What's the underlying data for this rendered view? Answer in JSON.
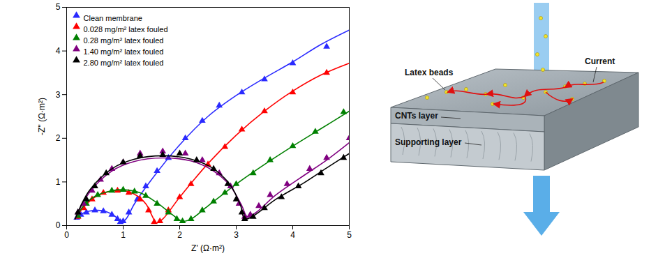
{
  "chart_data": {
    "type": "scatter",
    "x_label": "Z' (Ω·m²)",
    "y_label": "-Z'' (Ω·m²)",
    "xlim": [
      0,
      5
    ],
    "ylim": [
      0,
      5
    ],
    "xticks": [
      0,
      1,
      2,
      3,
      4,
      5
    ],
    "yticks": [
      0,
      1,
      2,
      3,
      4,
      5
    ],
    "grid": false,
    "legend": "top-left",
    "marker": "triangle",
    "series": [
      {
        "name": "Clean membrane",
        "color": "#2a2aff",
        "points": [
          [
            0.18,
            0.18
          ],
          [
            0.25,
            0.25
          ],
          [
            0.35,
            0.3
          ],
          [
            0.5,
            0.35
          ],
          [
            0.65,
            0.33
          ],
          [
            0.8,
            0.25
          ],
          [
            0.9,
            0.15
          ],
          [
            0.95,
            0.08
          ],
          [
            1.0,
            0.1
          ],
          [
            1.1,
            0.3
          ],
          [
            1.25,
            0.6
          ],
          [
            1.4,
            0.9
          ],
          [
            1.6,
            1.25
          ],
          [
            1.8,
            1.55
          ],
          [
            2.1,
            2.0
          ],
          [
            2.4,
            2.4
          ],
          [
            2.7,
            2.75
          ],
          [
            3.1,
            3.05
          ],
          [
            3.5,
            3.35
          ],
          [
            4.0,
            3.72
          ],
          [
            4.6,
            4.1
          ]
        ],
        "fit": [
          [
            0.15,
            0.15
          ],
          [
            0.25,
            0.26
          ],
          [
            0.4,
            0.33
          ],
          [
            0.55,
            0.35
          ],
          [
            0.7,
            0.32
          ],
          [
            0.85,
            0.22
          ],
          [
            0.97,
            0.08
          ],
          [
            1.05,
            0.15
          ],
          [
            1.2,
            0.5
          ],
          [
            1.5,
            1.05
          ],
          [
            2.0,
            1.85
          ],
          [
            2.5,
            2.5
          ],
          [
            3.0,
            2.98
          ],
          [
            3.5,
            3.38
          ],
          [
            4.0,
            3.75
          ],
          [
            4.5,
            4.15
          ],
          [
            5.0,
            4.48
          ]
        ]
      },
      {
        "name": "0.028 mg/m² latex fouled",
        "color": "#ff0000",
        "points": [
          [
            0.2,
            0.2
          ],
          [
            0.3,
            0.4
          ],
          [
            0.45,
            0.6
          ],
          [
            0.65,
            0.75
          ],
          [
            0.9,
            0.8
          ],
          [
            1.1,
            0.75
          ],
          [
            1.3,
            0.6
          ],
          [
            1.45,
            0.35
          ],
          [
            1.55,
            0.08
          ],
          [
            1.65,
            0.1
          ],
          [
            1.8,
            0.35
          ],
          [
            2.0,
            0.65
          ],
          [
            2.2,
            0.95
          ],
          [
            2.5,
            1.4
          ],
          [
            2.8,
            1.8
          ],
          [
            3.1,
            2.2
          ],
          [
            3.5,
            2.62
          ],
          [
            4.0,
            3.05
          ],
          [
            4.6,
            3.5
          ]
        ],
        "fit": [
          [
            0.15,
            0.15
          ],
          [
            0.3,
            0.42
          ],
          [
            0.5,
            0.65
          ],
          [
            0.75,
            0.78
          ],
          [
            1.0,
            0.8
          ],
          [
            1.2,
            0.72
          ],
          [
            1.4,
            0.5
          ],
          [
            1.52,
            0.2
          ],
          [
            1.58,
            0.06
          ],
          [
            1.7,
            0.15
          ],
          [
            2.0,
            0.65
          ],
          [
            2.5,
            1.42
          ],
          [
            3.0,
            2.07
          ],
          [
            3.5,
            2.62
          ],
          [
            4.0,
            3.08
          ],
          [
            4.5,
            3.45
          ],
          [
            5.0,
            3.72
          ]
        ]
      },
      {
        "name": "0.28 mg/m² latex fouled",
        "color": "#008000",
        "points": [
          [
            0.2,
            0.22
          ],
          [
            0.35,
            0.5
          ],
          [
            0.55,
            0.7
          ],
          [
            0.8,
            0.8
          ],
          [
            1.0,
            0.82
          ],
          [
            1.2,
            0.78
          ],
          [
            1.4,
            0.68
          ],
          [
            1.6,
            0.5
          ],
          [
            1.8,
            0.3
          ],
          [
            1.95,
            0.15
          ],
          [
            2.05,
            0.1
          ],
          [
            2.2,
            0.15
          ],
          [
            2.4,
            0.35
          ],
          [
            2.6,
            0.55
          ],
          [
            2.8,
            0.75
          ],
          [
            3.0,
            0.95
          ],
          [
            3.3,
            1.2
          ],
          [
            3.6,
            1.5
          ],
          [
            4.0,
            1.82
          ],
          [
            4.4,
            2.15
          ],
          [
            4.9,
            2.6
          ]
        ],
        "fit": [
          [
            0.15,
            0.15
          ],
          [
            0.3,
            0.45
          ],
          [
            0.5,
            0.67
          ],
          [
            0.8,
            0.8
          ],
          [
            1.0,
            0.82
          ],
          [
            1.3,
            0.75
          ],
          [
            1.6,
            0.52
          ],
          [
            1.85,
            0.27
          ],
          [
            2.05,
            0.1
          ],
          [
            2.2,
            0.15
          ],
          [
            2.5,
            0.45
          ],
          [
            3.0,
            0.95
          ],
          [
            3.5,
            1.4
          ],
          [
            4.0,
            1.82
          ],
          [
            4.5,
            2.22
          ],
          [
            5.0,
            2.62
          ]
        ]
      },
      {
        "name": "1.40 mg/m² latex fouled",
        "color": "#800080",
        "points": [
          [
            0.2,
            0.3
          ],
          [
            0.3,
            0.5
          ],
          [
            0.45,
            0.8
          ],
          [
            0.6,
            1.05
          ],
          [
            0.8,
            1.3
          ],
          [
            1.0,
            1.45
          ],
          [
            1.3,
            1.65
          ],
          [
            1.7,
            1.7
          ],
          [
            2.1,
            1.65
          ],
          [
            2.4,
            1.5
          ],
          [
            2.7,
            1.2
          ],
          [
            2.9,
            0.9
          ],
          [
            3.05,
            0.5
          ],
          [
            3.15,
            0.2
          ],
          [
            3.25,
            0.25
          ],
          [
            3.4,
            0.45
          ],
          [
            3.6,
            0.7
          ],
          [
            3.9,
            0.95
          ],
          [
            4.3,
            1.3
          ],
          [
            4.6,
            1.55
          ],
          [
            5.0,
            2.0
          ]
        ],
        "fit": [
          [
            0.15,
            0.15
          ],
          [
            0.4,
            0.75
          ],
          [
            0.8,
            1.25
          ],
          [
            1.2,
            1.47
          ],
          [
            1.7,
            1.55
          ],
          [
            2.2,
            1.48
          ],
          [
            2.6,
            1.25
          ],
          [
            2.9,
            0.9
          ],
          [
            3.1,
            0.45
          ],
          [
            3.2,
            0.2
          ],
          [
            3.35,
            0.3
          ],
          [
            3.7,
            0.7
          ],
          [
            4.2,
            1.15
          ],
          [
            4.6,
            1.5
          ],
          [
            5.0,
            1.9
          ]
        ]
      },
      {
        "name": "2.80 mg/m² latex fouled",
        "color": "#000000",
        "points": [
          [
            0.2,
            0.3
          ],
          [
            0.35,
            0.6
          ],
          [
            0.5,
            0.9
          ],
          [
            0.7,
            1.2
          ],
          [
            1.0,
            1.45
          ],
          [
            1.3,
            1.6
          ],
          [
            1.7,
            1.62
          ],
          [
            2.0,
            1.65
          ],
          [
            2.3,
            1.5
          ],
          [
            2.6,
            1.3
          ],
          [
            2.85,
            0.95
          ],
          [
            3.0,
            0.6
          ],
          [
            3.1,
            0.3
          ],
          [
            3.15,
            0.15
          ],
          [
            3.3,
            0.2
          ],
          [
            3.5,
            0.4
          ],
          [
            3.8,
            0.65
          ],
          [
            4.1,
            0.9
          ],
          [
            4.5,
            1.2
          ],
          [
            4.9,
            1.55
          ]
        ],
        "fit": [
          [
            0.15,
            0.15
          ],
          [
            0.4,
            0.8
          ],
          [
            0.8,
            1.3
          ],
          [
            1.2,
            1.52
          ],
          [
            1.7,
            1.6
          ],
          [
            2.2,
            1.52
          ],
          [
            2.6,
            1.3
          ],
          [
            2.9,
            0.92
          ],
          [
            3.08,
            0.45
          ],
          [
            3.15,
            0.15
          ],
          [
            3.3,
            0.22
          ],
          [
            3.7,
            0.6
          ],
          [
            4.2,
            0.98
          ],
          [
            4.6,
            1.32
          ],
          [
            5.0,
            1.65
          ]
        ]
      }
    ]
  },
  "diagram": {
    "labels": {
      "latex_beads": "Latex beads",
      "current": "Current",
      "cnts_layer": "CNTs layer",
      "supporting_layer": "Supporting layer"
    }
  }
}
